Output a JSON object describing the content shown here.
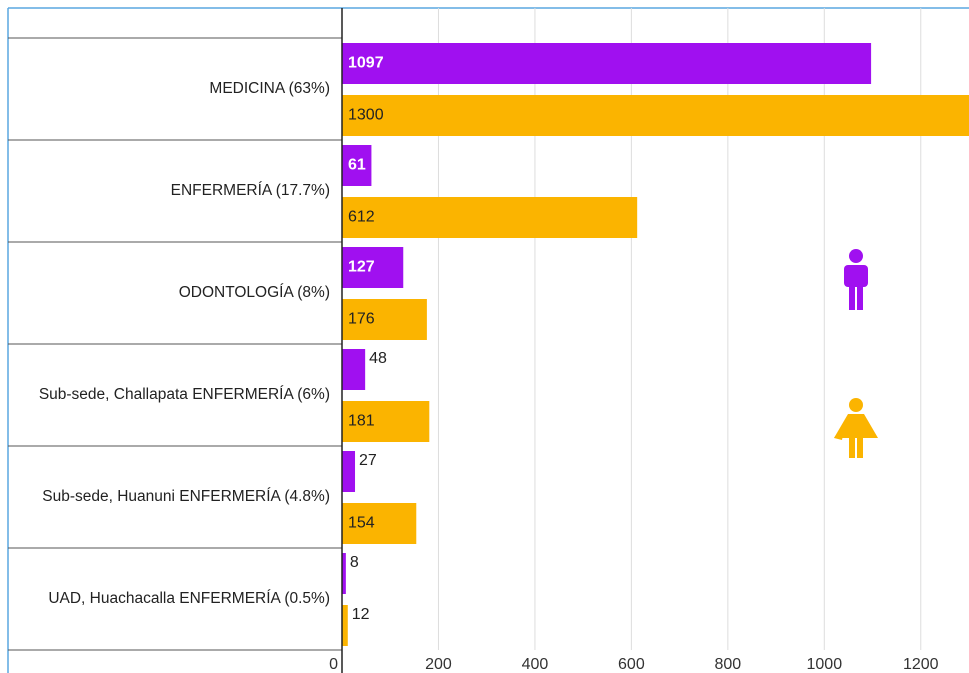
{
  "chart_data": {
    "type": "hbar",
    "categories": [
      "MEDICINA (63%)",
      "ENFERMERÍA (17.7%)",
      "ODONTOLOGÍA (8%)",
      "Sub-sede, Challapata ENFERMERÍA (6%)",
      "Sub-sede, Huanuni ENFERMERÍA (4.8%)",
      "UAD, Huachacalla ENFERMERÍA (0.5%)"
    ],
    "series": [
      {
        "color": "#a010f0",
        "values": [
          1097,
          61,
          127,
          48,
          27,
          8
        ]
      },
      {
        "color": "#fbb400",
        "values": [
          1300,
          612,
          176,
          181,
          154,
          12
        ]
      }
    ],
    "xlim": [
      0,
      1300
    ],
    "xticks": [
      0,
      200,
      400,
      600,
      800,
      1000,
      1200
    ],
    "grid": true
  }
}
